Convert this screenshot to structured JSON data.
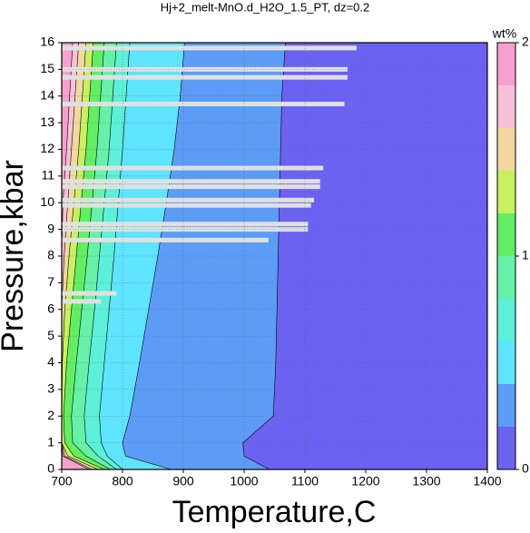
{
  "chart_data": {
    "type": "contour",
    "title": "Hj+2_melt-MnO.d_H2O_1.5_PT, dz=0.2",
    "x_label": "Temperature,C",
    "y_label": "Pressure,kbar",
    "xlim": [
      700,
      1400
    ],
    "xticks": [
      700,
      800,
      900,
      1000,
      1100,
      1200,
      1300,
      1400
    ],
    "ylim": [
      0,
      16
    ],
    "yticks": [
      0,
      1,
      2,
      3,
      4,
      5,
      6,
      7,
      8,
      9,
      10,
      11,
      12,
      13,
      14,
      15,
      16
    ],
    "grid": true,
    "colorbar_label": "wt%",
    "clim": [
      0,
      2
    ],
    "cticks": [
      0,
      1,
      2
    ],
    "contour_levels": [
      0,
      0.2,
      0.4,
      0.6,
      0.8,
      1,
      1.2,
      1.4,
      1.6,
      1.8,
      2
    ],
    "colors": [
      "#6c62f2",
      "#5c9cf6",
      "#5ee4fc",
      "#5cf0d8",
      "#66f0a8",
      "#62ee62",
      "#c8f060",
      "#f2d8a0",
      "#f8c0d8",
      "#f6a0d0"
    ],
    "contours": [
      {
        "level": 1.8,
        "t": [
          718,
          713,
          708,
          702,
          700,
          700,
          700,
          700,
          700,
          702,
          745
        ],
        "p": [
          16,
          14,
          12,
          10,
          8,
          6,
          4,
          2,
          1,
          0.5,
          0
        ]
      },
      {
        "level": 1.6,
        "t": [
          728,
          722,
          716,
          710,
          704,
          700,
          700,
          700,
          700,
          705,
          750
        ],
        "p": [
          16,
          14,
          12,
          10,
          8,
          6,
          4,
          2,
          1,
          0.5,
          0
        ]
      },
      {
        "level": 1.4,
        "t": [
          740,
          734,
          728,
          720,
          712,
          705,
          701,
          700,
          700,
          710,
          760
        ],
        "p": [
          16,
          14,
          12,
          10,
          8,
          6,
          4,
          2,
          1,
          0.5,
          0
        ]
      },
      {
        "level": 1.2,
        "t": [
          752,
          746,
          740,
          732,
          724,
          716,
          708,
          703,
          705,
          720,
          770
        ],
        "p": [
          16,
          14,
          12,
          10,
          8,
          6,
          4,
          2,
          1,
          0.5,
          0
        ]
      },
      {
        "level": 1,
        "t": [
          770,
          764,
          758,
          750,
          742,
          733,
          724,
          716,
          718,
          740,
          780
        ],
        "p": [
          16,
          14,
          12,
          10,
          8,
          6,
          4,
          2,
          1,
          0.5,
          0
        ]
      },
      {
        "level": 0.8,
        "t": [
          790,
          784,
          778,
          770,
          762,
          754,
          745,
          737,
          740,
          760,
          790
        ],
        "p": [
          16,
          14,
          12,
          10,
          8,
          6,
          4,
          2,
          1,
          0.5,
          0
        ]
      },
      {
        "level": 0.6,
        "t": [
          812,
          806,
          800,
          793,
          786,
          778,
          770,
          762,
          765,
          775,
          800
        ],
        "p": [
          16,
          14,
          12,
          10,
          8,
          6,
          4,
          2,
          1,
          0.5,
          0
        ]
      },
      {
        "level": 0.4,
        "t": [
          902,
          895,
          885,
          872,
          858,
          843,
          828,
          812,
          800,
          805,
          880
        ],
        "p": [
          16,
          14,
          12,
          10,
          8,
          6,
          4,
          2,
          1,
          0.5,
          0
        ]
      },
      {
        "level": 0.2,
        "t": [
          1068,
          1062,
          1060,
          1058,
          1056,
          1054,
          1052,
          1048,
          998,
          1000,
          1042
        ],
        "p": [
          16,
          14,
          12,
          10,
          8,
          6,
          4,
          2,
          1,
          0.5,
          0
        ]
      }
    ],
    "masked_color": "#e0e0e0",
    "masked": [
      {
        "p": 15.8,
        "t_end": 1185
      },
      {
        "p": 15.0,
        "t_end": 1170
      },
      {
        "p": 14.7,
        "t_end": 1170
      },
      {
        "p": 13.7,
        "t_end": 1165
      },
      {
        "p": 11.3,
        "t_end": 1130
      },
      {
        "p": 10.8,
        "t_end": 1125
      },
      {
        "p": 10.6,
        "t_end": 1125
      },
      {
        "p": 10.1,
        "t_end": 1115
      },
      {
        "p": 9.9,
        "t_end": 1110
      },
      {
        "p": 9.2,
        "t_end": 1105
      },
      {
        "p": 9.0,
        "t_end": 1105
      },
      {
        "p": 8.6,
        "t_end": 1040
      },
      {
        "p": 6.6,
        "t_end": 790
      },
      {
        "p": 6.3,
        "t_end": 765
      }
    ]
  }
}
